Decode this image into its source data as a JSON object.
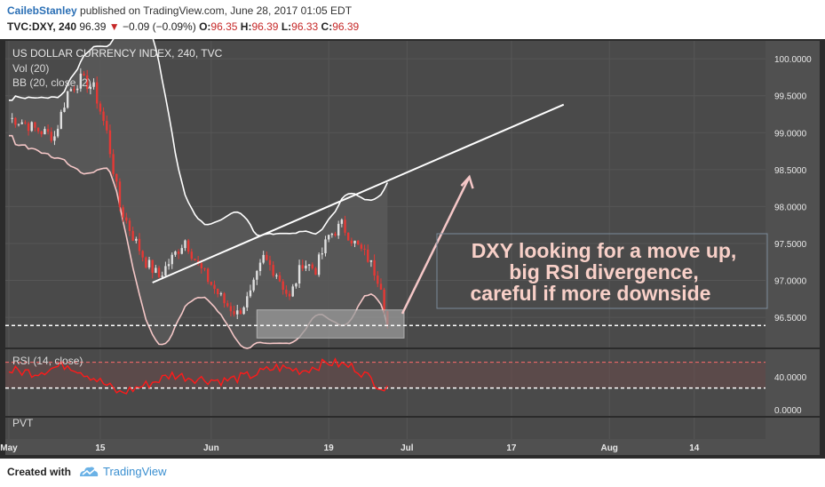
{
  "header": {
    "author": "CailebStanley",
    "published_text": "published on TradingView.com, June 28, 2017 01:05 EDT",
    "symbol": "TVC:DXY, 240",
    "last_price": "96.39",
    "change_arrow": "▼",
    "change": "−0.09 (−0.09%)",
    "open_label": "O:",
    "open": "96.35",
    "high_label": "H:",
    "high": "96.39",
    "low_label": "L:",
    "low": "96.33",
    "close_label": "C:",
    "close": "96.39"
  },
  "chart_data": {
    "type": "candlestick",
    "title": "US DOLLAR CURRENCY INDEX, 240, TVC",
    "indicators": [
      "Vol (20)",
      "BB (20, close, 2)"
    ],
    "rsi_label": "RSI (14, close)",
    "pvt_label": "PVT",
    "x_ticks": [
      "May",
      "15",
      "Jun",
      "19",
      "Jul",
      "17",
      "Aug",
      "14"
    ],
    "price_axis": [
      "100.0000",
      "99.5000",
      "99.0000",
      "98.5000",
      "98.0000",
      "97.5000",
      "97.0000",
      "96.5000"
    ],
    "ylim": [
      96.2,
      100.05
    ],
    "rsi_axis": [
      "40.0000"
    ],
    "pvt_axis": [
      "0.0000"
    ],
    "price_series": [
      [
        "May 1",
        99.2
      ],
      [
        "May 3",
        99.15
      ],
      [
        "May 5",
        99.05
      ],
      [
        "May 8",
        98.95
      ],
      [
        "May 10",
        99.55
      ],
      [
        "May 12",
        99.72
      ],
      [
        "May 14",
        99.6
      ],
      [
        "May 16",
        99.0
      ],
      [
        "May 18",
        98.0
      ],
      [
        "May 20",
        97.6
      ],
      [
        "May 22",
        97.25
      ],
      [
        "May 24",
        97.05
      ],
      [
        "May 26",
        97.3
      ],
      [
        "May 28",
        97.55
      ],
      [
        "May 30",
        97.2
      ],
      [
        "Jun 1",
        96.95
      ],
      [
        "Jun 3",
        96.7
      ],
      [
        "Jun 5",
        96.55
      ],
      [
        "Jun 7",
        96.8
      ],
      [
        "Jun 9",
        97.3
      ],
      [
        "Jun 11",
        97.1
      ],
      [
        "Jun 13",
        96.75
      ],
      [
        "Jun 15",
        97.25
      ],
      [
        "Jun 17",
        97.15
      ],
      [
        "Jun 19",
        97.6
      ],
      [
        "Jun 21",
        97.75
      ],
      [
        "Jun 23",
        97.5
      ],
      [
        "Jun 25",
        97.3
      ],
      [
        "Jun 27",
        96.95
      ],
      [
        "Jun 28",
        96.39
      ]
    ],
    "rsi_series": [
      [
        "May 1",
        52
      ],
      [
        "May 5",
        50
      ],
      [
        "May 10",
        58
      ],
      [
        "May 14",
        45
      ],
      [
        "May 18",
        30
      ],
      [
        "May 22",
        38
      ],
      [
        "May 26",
        48
      ],
      [
        "May 30",
        44
      ],
      [
        "Jun 3",
        42
      ],
      [
        "Jun 7",
        47
      ],
      [
        "Jun 11",
        55
      ],
      [
        "Jun 15",
        52
      ],
      [
        "Jun 19",
        60
      ],
      [
        "Jun 23",
        55
      ],
      [
        "Jun 28",
        32
      ]
    ],
    "support_level": 96.39,
    "trendline": [
      [
        "May 23",
        96.97
      ],
      [
        "Jul 25",
        99.38
      ]
    ],
    "colors": {
      "background": "#4a4a4a",
      "bb_upper": "#ffffff",
      "bb_lower": "#f5c7c7",
      "candle_up": "#e0e0e0",
      "candle_down": "#e53935",
      "rsi_line": "#ff1a1a",
      "annotation_text": "#f8d0c8"
    }
  },
  "annotation": {
    "line1": "DXY looking for a move up,",
    "line2": "big RSI divergence,",
    "line3": "careful if more downside"
  },
  "footer": {
    "created_with": "Created with",
    "brand": "TradingView"
  }
}
